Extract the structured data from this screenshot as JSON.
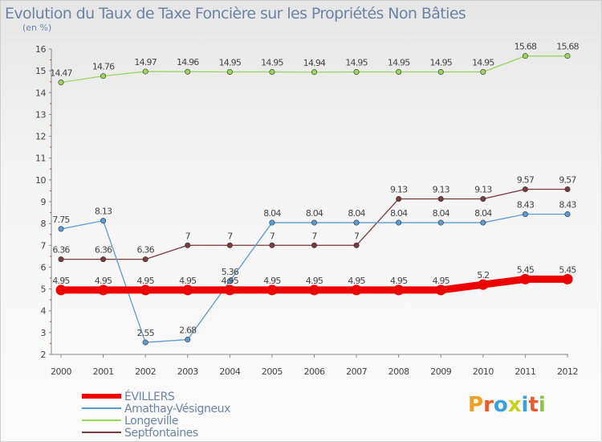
{
  "chart_data": {
    "type": "line",
    "title": "Evolution du Taux de Taxe Foncière sur les Propriétés Non Bâties",
    "ylabel": "(en %)",
    "xlabel": "",
    "categories": [
      "2000",
      "2001",
      "2002",
      "2003",
      "2004",
      "2005",
      "2006",
      "2007",
      "2008",
      "2009",
      "2010",
      "2011",
      "2012"
    ],
    "yticks": [
      2,
      3,
      4,
      5,
      6,
      7,
      8,
      9,
      10,
      11,
      12,
      13,
      14,
      15,
      16
    ],
    "ylim": [
      2,
      16
    ],
    "grid": false,
    "legend_position": "bottom-left",
    "series": [
      {
        "name": "Longeville",
        "color": "#99d65c",
        "values": [
          14.47,
          14.76,
          14.97,
          14.96,
          14.95,
          14.95,
          14.94,
          14.95,
          14.95,
          14.95,
          14.95,
          15.68,
          15.68
        ],
        "labels": [
          "14.47",
          "14.76",
          "14.97",
          "14.96",
          "14.95",
          "14.95",
          "14.94",
          "14.95",
          "14.95",
          "14.95",
          "14.95",
          "15.68",
          "15.68"
        ]
      },
      {
        "name": "Septfontaines",
        "color": "#7a3b3b",
        "values": [
          6.36,
          6.36,
          6.36,
          7,
          7,
          7,
          7,
          7,
          9.13,
          9.13,
          9.13,
          9.57,
          9.57
        ],
        "labels": [
          "6.36",
          "6.36",
          "6.36",
          "7",
          "7",
          "7",
          "7",
          "7",
          "9.13",
          "9.13",
          "9.13",
          "9.57",
          "9.57"
        ]
      },
      {
        "name": "Amathay-Vésigneux",
        "color": "#5b9bd5",
        "values": [
          7.75,
          8.13,
          2.55,
          2.68,
          5.36,
          8.04,
          8.04,
          8.04,
          8.04,
          8.04,
          8.04,
          8.43,
          8.43
        ],
        "labels": [
          "7.75",
          "8.13",
          "2.55",
          "2.68",
          "5.36",
          "8.04",
          "8.04",
          "8.04",
          "8.04",
          "8.04",
          "8.04",
          "8.43",
          "8.43"
        ]
      },
      {
        "name": "ÉVILLERS",
        "color": "#ee0000",
        "values": [
          4.95,
          4.95,
          4.95,
          4.95,
          4.95,
          4.95,
          4.95,
          4.95,
          4.95,
          4.95,
          5.2,
          5.45,
          5.45
        ],
        "labels": [
          "4.95",
          "4.95",
          "4.95",
          "4.95",
          "4.95",
          "4.95",
          "4.95",
          "4.95",
          "4.95",
          "4.95",
          "5.2",
          "5.45",
          "5.45"
        ]
      }
    ],
    "legend": [
      "ÉVILLERS",
      "Amathay-Vésigneux",
      "Longeville",
      "Septfontaines"
    ]
  },
  "branding": {
    "logo_text": "Proxiti"
  }
}
